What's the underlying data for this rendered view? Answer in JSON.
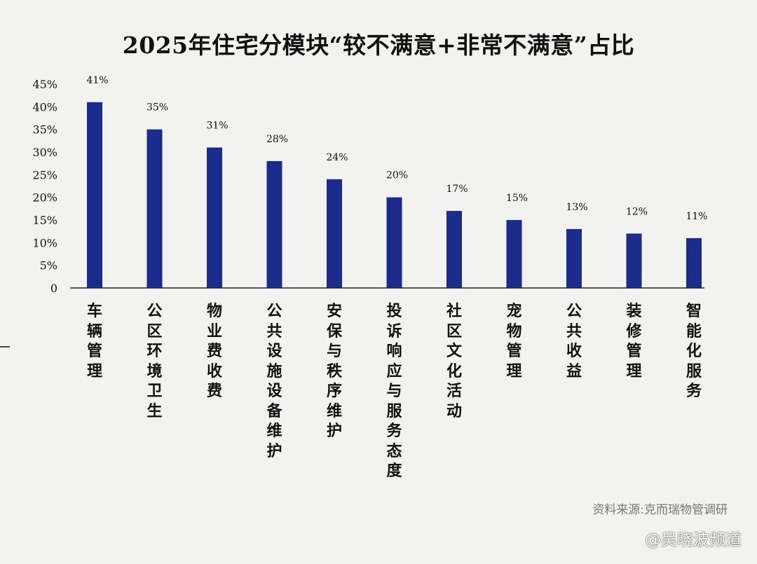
{
  "chart_data": {
    "type": "bar",
    "title": "2025年住宅分模块“较不满意+非常不满意”占比",
    "categories": [
      "车辆管理",
      "公区环境卫生",
      "物业费收费",
      "公共设施设备维护",
      "安保与秩序维护",
      "投诉响应与服务态度",
      "社区文化活动",
      "宠物管理",
      "公共收益",
      "装修管理",
      "智能化服务"
    ],
    "values": [
      41,
      35,
      31,
      28,
      24,
      20,
      17,
      15,
      13,
      12,
      11
    ],
    "value_labels": [
      "41%",
      "35%",
      "31%",
      "28%",
      "24%",
      "20%",
      "17%",
      "15%",
      "13%",
      "12%",
      "11%"
    ],
    "yticks": [
      "0",
      "5%",
      "10%",
      "15%",
      "20%",
      "25%",
      "30%",
      "35%",
      "40%",
      "45%"
    ],
    "ylim": [
      0,
      45
    ],
    "bar_color": "#1b2c8c",
    "grid": false,
    "legend": "none"
  },
  "source": "资料来源:克而瑞物管调研",
  "watermark": "@吴晓波频道"
}
